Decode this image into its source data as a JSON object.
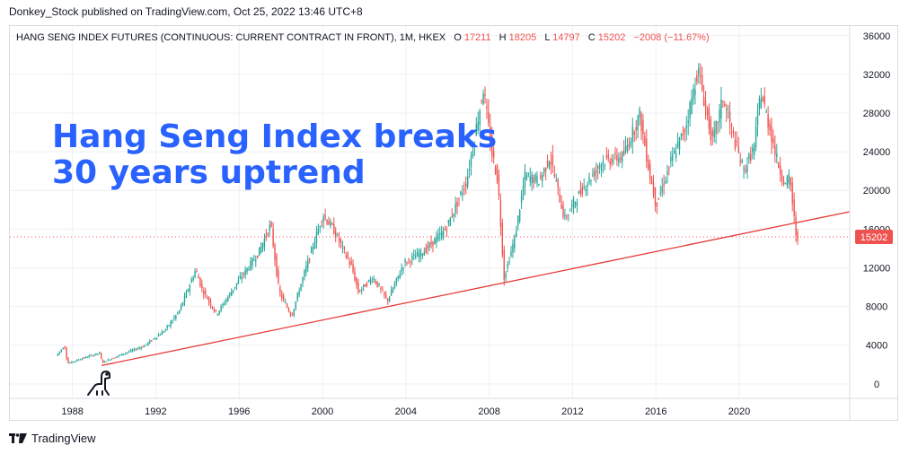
{
  "header": {
    "published": "Donkey_Stock published on TradingView.com, Oct 25, 2022 13:46 UTC+8"
  },
  "footer": {
    "brand": "TradingView"
  },
  "colors": {
    "up": "#26a69a",
    "down": "#ef5350",
    "trendline": "#e53935",
    "annotation": "#2962ff",
    "grid": "#eef0f3",
    "axis_text": "#131722",
    "price_label_bg": "#ef5350"
  },
  "chart_data": {
    "type": "candlestick",
    "title": "HANG SENG INDEX FUTURES (CONTINUOUS: CURRENT CONTRACT IN FRONT), 1M, HKEX",
    "ohlc_legend": {
      "o_label": "O",
      "o": "17211",
      "h_label": "H",
      "h": "18205",
      "l_label": "L",
      "l": "14797",
      "c_label": "C",
      "c": "15202",
      "change": "−2008 (−11.67%)"
    },
    "annotation": {
      "line1": "Hang Seng Index breaks",
      "line2": "30 years uptrend"
    },
    "x_range": [
      1985.0,
      2025.3
    ],
    "y_range": [
      -1500,
      37000
    ],
    "x_ticks": [
      {
        "value": 1988,
        "label": "1988"
      },
      {
        "value": 1992,
        "label": "1992"
      },
      {
        "value": 1996,
        "label": "1996"
      },
      {
        "value": 2000,
        "label": "2000"
      },
      {
        "value": 2004,
        "label": "2004"
      },
      {
        "value": 2008,
        "label": "2008"
      },
      {
        "value": 2012,
        "label": "2012"
      },
      {
        "value": 2016,
        "label": "2016"
      },
      {
        "value": 2020,
        "label": "2020"
      }
    ],
    "y_ticks": [
      {
        "value": 0,
        "label": "0"
      },
      {
        "value": 4000,
        "label": "4000"
      },
      {
        "value": 8000,
        "label": "8000"
      },
      {
        "value": 12000,
        "label": "12000"
      },
      {
        "value": 16000,
        "label": "16000"
      },
      {
        "value": 20000,
        "label": "20000"
      },
      {
        "value": 24000,
        "label": "24000"
      },
      {
        "value": 28000,
        "label": "28000"
      },
      {
        "value": 32000,
        "label": "32000"
      },
      {
        "value": 36000,
        "label": "36000"
      }
    ],
    "last_price": {
      "value": 15202,
      "label": "15202"
    },
    "trendline": {
      "points": [
        [
          1989.4,
          1900
        ],
        [
          2025.3,
          17800
        ]
      ]
    },
    "price_anchors": [
      [
        1987.3,
        2900
      ],
      [
        1987.7,
        3950
      ],
      [
        1987.85,
        2100
      ],
      [
        1988.5,
        2600
      ],
      [
        1989.4,
        3200
      ],
      [
        1989.5,
        2200
      ],
      [
        1990.5,
        3100
      ],
      [
        1991.5,
        3900
      ],
      [
        1992.5,
        5500
      ],
      [
        1993.2,
        7500
      ],
      [
        1994.0,
        11800
      ],
      [
        1994.3,
        9800
      ],
      [
        1995.0,
        7200
      ],
      [
        1996.0,
        10500
      ],
      [
        1997.0,
        13500
      ],
      [
        1997.6,
        16500
      ],
      [
        1998.0,
        9500
      ],
      [
        1998.6,
        7000
      ],
      [
        1999.0,
        10000
      ],
      [
        2000.1,
        17500
      ],
      [
        2000.6,
        16000
      ],
      [
        2001.5,
        12000
      ],
      [
        2001.8,
        9500
      ],
      [
        2002.5,
        11000
      ],
      [
        2003.2,
        8600
      ],
      [
        2004.0,
        12500
      ],
      [
        2005.0,
        13800
      ],
      [
        2006.0,
        16000
      ],
      [
        2007.0,
        21000
      ],
      [
        2007.8,
        30500
      ],
      [
        2008.2,
        24000
      ],
      [
        2008.5,
        21000
      ],
      [
        2008.8,
        11000
      ],
      [
        2009.3,
        15000
      ],
      [
        2009.8,
        21500
      ],
      [
        2010.5,
        21000
      ],
      [
        2011.0,
        23500
      ],
      [
        2011.7,
        17000
      ],
      [
        2012.5,
        20000
      ],
      [
        2013.5,
        23000
      ],
      [
        2014.5,
        23500
      ],
      [
        2015.3,
        27800
      ],
      [
        2015.8,
        21500
      ],
      [
        2016.1,
        18500
      ],
      [
        2016.8,
        23000
      ],
      [
        2017.5,
        26500
      ],
      [
        2018.1,
        32500
      ],
      [
        2018.8,
        25000
      ],
      [
        2019.3,
        29500
      ],
      [
        2019.8,
        25500
      ],
      [
        2020.3,
        22000
      ],
      [
        2020.8,
        24500
      ],
      [
        2021.1,
        30200
      ],
      [
        2021.6,
        26000
      ],
      [
        2021.9,
        23000
      ],
      [
        2022.3,
        20500
      ],
      [
        2022.5,
        21500
      ],
      [
        2022.75,
        16300
      ],
      [
        2022.82,
        15202
      ]
    ]
  }
}
